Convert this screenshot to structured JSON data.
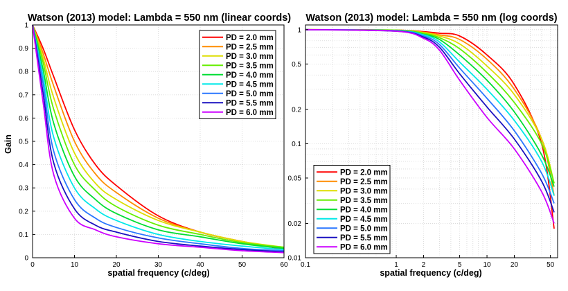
{
  "chart_data": [
    {
      "type": "line",
      "title": "Watson (2013) model: Lambda = 550 nm (linear coords)",
      "xlabel": "spatial frequency (c/deg)",
      "ylabel": "Gain",
      "xscale": "linear",
      "yscale": "linear",
      "xlim": [
        0,
        60
      ],
      "ylim": [
        0,
        1
      ],
      "xticks": [
        "0",
        "10",
        "20",
        "30",
        "40",
        "50",
        "60"
      ],
      "xtick_values": [
        0,
        10,
        20,
        30,
        40,
        50,
        60
      ],
      "yticks": [
        "0",
        "0.1",
        "0.2",
        "0.3",
        "0.4",
        "0.5",
        "0.6",
        "0.7",
        "0.8",
        "0.9",
        "1"
      ],
      "ytick_values": [
        0,
        0.1,
        0.2,
        0.3,
        0.4,
        0.5,
        0.6,
        0.7,
        0.8,
        0.9,
        1
      ],
      "grid": "on",
      "legend_position": "top-right",
      "x": [
        0,
        2.5,
        5,
        10,
        15,
        20,
        30,
        40,
        50,
        60
      ],
      "series": [
        {
          "name": "PD = 2.0 mm",
          "color": "#ff0000",
          "values": [
            1.0,
            0.9,
            0.78,
            0.55,
            0.4,
            0.31,
            0.18,
            0.11,
            0.07,
            0.035
          ]
        },
        {
          "name": "PD = 2.5 mm",
          "color": "#ff8c00",
          "values": [
            1.0,
            0.88,
            0.74,
            0.5,
            0.36,
            0.28,
            0.17,
            0.11,
            0.07,
            0.04
          ]
        },
        {
          "name": "PD = 3.0 mm",
          "color": "#dddd00",
          "values": [
            1.0,
            0.86,
            0.69,
            0.45,
            0.32,
            0.25,
            0.16,
            0.11,
            0.07,
            0.045
          ]
        },
        {
          "name": "PD = 3.5 mm",
          "color": "#66ee00",
          "values": [
            1.0,
            0.84,
            0.64,
            0.4,
            0.29,
            0.22,
            0.14,
            0.1,
            0.065,
            0.045
          ]
        },
        {
          "name": "PD = 4.0 mm",
          "color": "#00dd33",
          "values": [
            1.0,
            0.81,
            0.58,
            0.35,
            0.25,
            0.19,
            0.12,
            0.09,
            0.06,
            0.04
          ]
        },
        {
          "name": "PD = 4.5 mm",
          "color": "#00e8e8",
          "values": [
            1.0,
            0.78,
            0.52,
            0.3,
            0.21,
            0.16,
            0.1,
            0.07,
            0.05,
            0.035
          ]
        },
        {
          "name": "PD = 5.0 mm",
          "color": "#2a77ff",
          "values": [
            1.0,
            0.75,
            0.46,
            0.25,
            0.17,
            0.13,
            0.085,
            0.06,
            0.04,
            0.03
          ]
        },
        {
          "name": "PD = 5.5 mm",
          "color": "#1a10c0",
          "values": [
            1.0,
            0.71,
            0.41,
            0.21,
            0.14,
            0.11,
            0.07,
            0.05,
            0.035,
            0.025
          ]
        },
        {
          "name": "PD = 6.0 mm",
          "color": "#cc00ff",
          "values": [
            1.0,
            0.67,
            0.36,
            0.17,
            0.12,
            0.09,
            0.06,
            0.045,
            0.03,
            0.022
          ]
        }
      ]
    },
    {
      "type": "line",
      "title": "Watson (2013) model: Lambda = 550 nm (log coords)",
      "xlabel": "spatial frequency (c/deg)",
      "ylabel": "",
      "xscale": "log",
      "yscale": "log",
      "xlim": [
        0.1,
        60
      ],
      "ylim": [
        0.01,
        1.1
      ],
      "xticks": [
        "0.1",
        "1",
        "2",
        "5",
        "10",
        "20",
        "50"
      ],
      "xtick_values": [
        0.1,
        1,
        2,
        5,
        10,
        20,
        50
      ],
      "yticks": [
        "0.01",
        "0.02",
        "0.05",
        "0.1",
        "0.2",
        "0.5",
        "1"
      ],
      "ytick_values": [
        0.01,
        0.02,
        0.05,
        0.1,
        0.2,
        0.5,
        1
      ],
      "grid": "on",
      "legend_position": "bottom-left",
      "x": [
        0.1,
        1,
        2,
        3,
        5,
        10,
        20,
        40,
        55
      ],
      "series": [
        {
          "name": "PD = 2.0 mm",
          "color": "#ff0000",
          "values": [
            1.0,
            0.99,
            0.96,
            0.93,
            0.88,
            0.6,
            0.33,
            0.1,
            0.018
          ]
        },
        {
          "name": "PD = 2.5 mm",
          "color": "#ff8c00",
          "values": [
            1.0,
            0.99,
            0.95,
            0.9,
            0.82,
            0.55,
            0.3,
            0.11,
            0.035
          ]
        },
        {
          "name": "PD = 3.0 mm",
          "color": "#dddd00",
          "values": [
            1.0,
            0.99,
            0.94,
            0.88,
            0.75,
            0.48,
            0.27,
            0.11,
            0.045
          ]
        },
        {
          "name": "PD = 3.5 mm",
          "color": "#66ee00",
          "values": [
            1.0,
            0.99,
            0.93,
            0.85,
            0.68,
            0.42,
            0.23,
            0.1,
            0.045
          ]
        },
        {
          "name": "PD = 4.0 mm",
          "color": "#00dd33",
          "values": [
            1.0,
            0.98,
            0.91,
            0.82,
            0.6,
            0.36,
            0.19,
            0.08,
            0.042
          ]
        },
        {
          "name": "PD = 4.5 mm",
          "color": "#00e8e8",
          "values": [
            1.0,
            0.98,
            0.9,
            0.78,
            0.52,
            0.3,
            0.16,
            0.07,
            0.035
          ]
        },
        {
          "name": "PD = 5.0 mm",
          "color": "#2a77ff",
          "values": [
            1.0,
            0.98,
            0.88,
            0.74,
            0.46,
            0.25,
            0.13,
            0.055,
            0.03
          ]
        },
        {
          "name": "PD = 5.5 mm",
          "color": "#1a10c0",
          "values": [
            1.0,
            0.97,
            0.86,
            0.7,
            0.41,
            0.21,
            0.11,
            0.047,
            0.025
          ]
        },
        {
          "name": "PD = 6.0 mm",
          "color": "#cc00ff",
          "values": [
            1.0,
            0.97,
            0.84,
            0.66,
            0.36,
            0.17,
            0.09,
            0.038,
            0.02
          ]
        }
      ]
    }
  ]
}
